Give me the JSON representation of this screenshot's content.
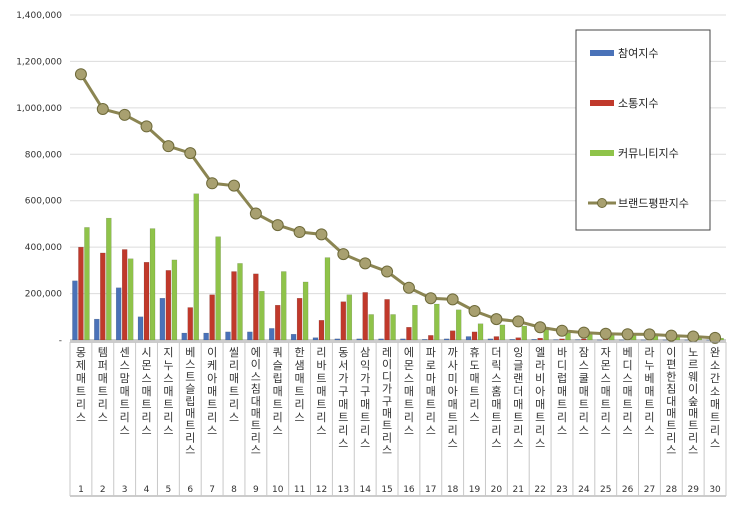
{
  "chart_data": {
    "type": "bar",
    "title": "",
    "xlabel": "",
    "ylabel": "",
    "ylim": [
      0,
      1400000
    ],
    "y_ticks": [
      "-",
      "200,000",
      "400,000",
      "600,000",
      "800,000",
      "1,000,000",
      "1,200,000",
      "1,400,000"
    ],
    "grid": true,
    "legend_position": "top-right",
    "categories": [
      "몽제매트리스",
      "템퍼매트리스",
      "센스맘매트리스",
      "시몬스매트리스",
      "지누스매트리스",
      "베스트슬립매트리스",
      "이케아매트리스",
      "씰리매트리스",
      "에이스침대매트리스",
      "쿼슬립매트리스",
      "한샘매트리스",
      "리바트매트리스",
      "동서가구매트리스",
      "삼익가구매트리스",
      "레이디가구매트리스",
      "에몬스매트리스",
      "파로마매트리스",
      "까사미아매트리스",
      "휴도매트리스",
      "더릭스홈매트리스",
      "잉글랜더매트리스",
      "엘라비아매트리스",
      "바디럽매트리스",
      "잠스쿨매트리스",
      "자몬스매트리스",
      "베디스매트리스",
      "라누베매트리스",
      "이편한침대매트리스",
      "노르웨이숲매트리스",
      "완소간소매트리스"
    ],
    "ranks": [
      "1",
      "2",
      "3",
      "4",
      "5",
      "6",
      "7",
      "8",
      "9",
      "10",
      "11",
      "12",
      "13",
      "14",
      "15",
      "16",
      "17",
      "18",
      "19",
      "20",
      "21",
      "22",
      "23",
      "24",
      "25",
      "26",
      "27",
      "28",
      "29",
      "30"
    ],
    "series": [
      {
        "name": "참여지수",
        "type": "bar",
        "color": "#4a72b8",
        "values": [
          255000,
          90000,
          225000,
          100000,
          180000,
          30000,
          30000,
          35000,
          35000,
          50000,
          25000,
          10000,
          5000,
          5000,
          5000,
          5000,
          3000,
          5000,
          15000,
          5000,
          3000,
          3000,
          2000,
          2000,
          1000,
          1000,
          1000,
          1000,
          1000,
          500
        ]
      },
      {
        "name": "소통지수",
        "type": "bar",
        "color": "#c0392b",
        "values": [
          400000,
          375000,
          390000,
          335000,
          300000,
          140000,
          195000,
          295000,
          285000,
          150000,
          180000,
          85000,
          165000,
          205000,
          175000,
          55000,
          20000,
          40000,
          35000,
          15000,
          10000,
          8000,
          5000,
          5000,
          3000,
          3000,
          2000,
          2000,
          1500,
          1000
        ]
      },
      {
        "name": "커뮤니티지수",
        "type": "bar",
        "color": "#8fc34a",
        "values": [
          485000,
          525000,
          350000,
          480000,
          345000,
          630000,
          445000,
          330000,
          210000,
          295000,
          250000,
          355000,
          195000,
          110000,
          110000,
          150000,
          155000,
          130000,
          70000,
          65000,
          60000,
          45000,
          30000,
          25000,
          20000,
          20000,
          20000,
          15000,
          12000,
          8000
        ]
      },
      {
        "name": "브랜드평판지수",
        "type": "line",
        "color": "#8b8552",
        "values": [
          1145000,
          995000,
          970000,
          920000,
          835000,
          805000,
          675000,
          665000,
          545000,
          495000,
          465000,
          455000,
          370000,
          330000,
          295000,
          225000,
          180000,
          175000,
          125000,
          90000,
          80000,
          55000,
          40000,
          32000,
          27000,
          25000,
          24000,
          19000,
          15000,
          9000
        ]
      }
    ]
  }
}
